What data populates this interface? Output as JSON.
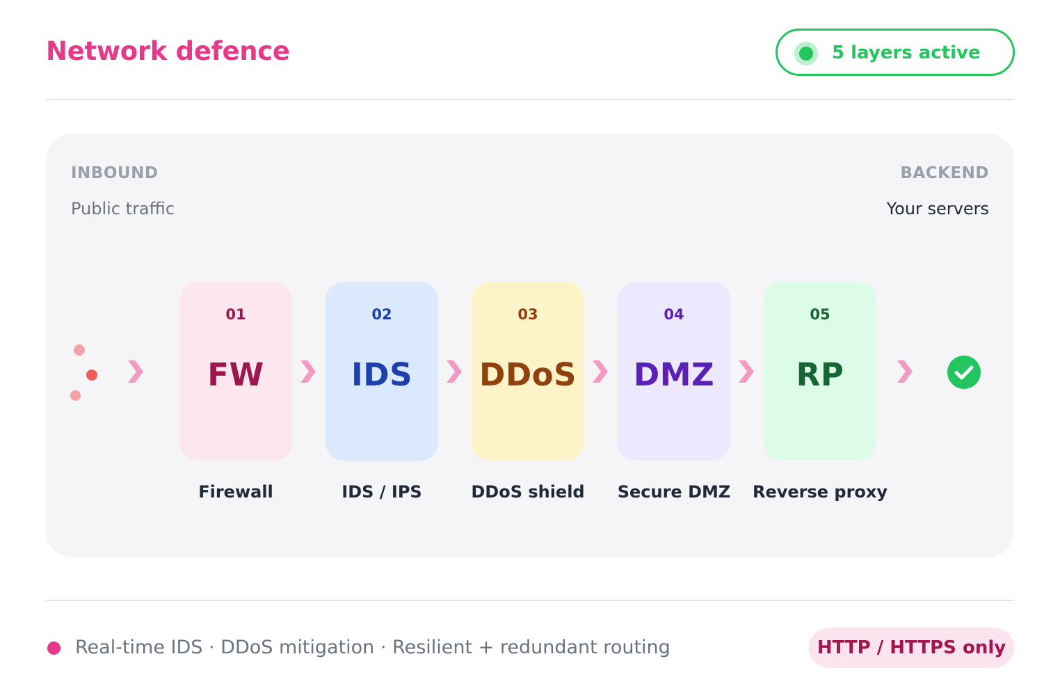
{
  "header": {
    "title": "Network defence",
    "status": {
      "label": "5 layers active",
      "color": "#22c55e"
    }
  },
  "flow": {
    "source": {
      "label": "INBOUND",
      "sublabel": "Public traffic"
    },
    "destination": {
      "label": "BACKEND",
      "sublabel": "Your servers",
      "icon": "check-circle-icon"
    },
    "connector_icon": "chevron-right-icon",
    "layers": [
      {
        "num": "01",
        "code": "FW",
        "name": "Firewall",
        "bg": "#fce7ef",
        "fg": "#9d174d"
      },
      {
        "num": "02",
        "code": "IDS",
        "name": "IDS / IPS",
        "bg": "#dbe9fd",
        "fg": "#1e40af"
      },
      {
        "num": "03",
        "code": "DDoS",
        "name": "DDoS shield",
        "bg": "#fdf3c8",
        "fg": "#92400e"
      },
      {
        "num": "04",
        "code": "DMZ",
        "name": "Secure DMZ",
        "bg": "#ece8fd",
        "fg": "#5b21b6"
      },
      {
        "num": "05",
        "code": "RP",
        "name": "Reverse proxy",
        "bg": "#dcfce7",
        "fg": "#166534"
      }
    ]
  },
  "footer": {
    "features": "Real-time IDS · DDoS mitigation · Resilient + redundant routing",
    "badge": "HTTP / HTTPS only"
  },
  "colors": {
    "accent": "#e8388a",
    "success": "#22c55e",
    "connector": "#f29ac3"
  }
}
